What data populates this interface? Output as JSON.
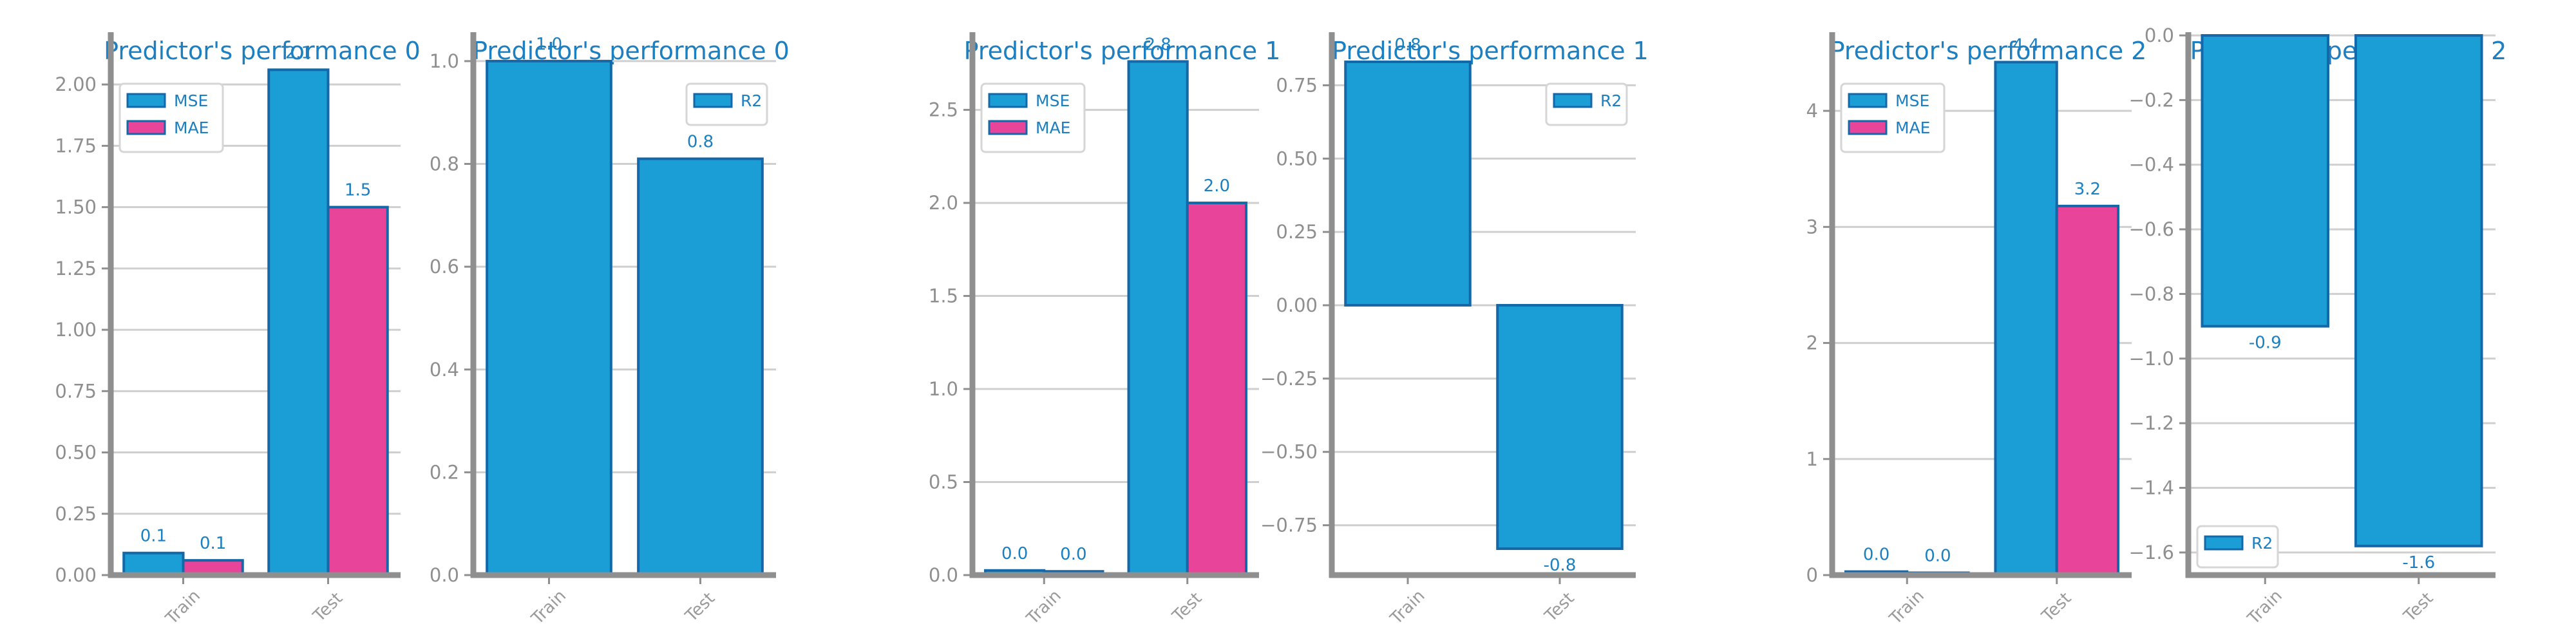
{
  "colors": {
    "MSE": "#1b9dd6",
    "MAE": "#e8449a",
    "R2": "#1b9dd6",
    "edge": "#1468a8"
  },
  "chart_data": [
    {
      "type": "bar",
      "title": "Predictor's performance 0",
      "categories": [
        "Train",
        "Test"
      ],
      "series": [
        {
          "name": "MSE",
          "values": [
            0.09,
            2.06
          ],
          "labels": [
            "0.1",
            "2.1"
          ]
        },
        {
          "name": "MAE",
          "values": [
            0.06,
            1.5
          ],
          "labels": [
            "0.1",
            "1.5"
          ]
        }
      ],
      "ylim": [
        0,
        2.2
      ],
      "yticks": [
        0,
        0.25,
        0.5,
        0.75,
        1.0,
        1.25,
        1.5,
        1.75,
        2.0
      ],
      "ytick_labels": [
        "0.00",
        "0.25",
        "0.50",
        "0.75",
        "1.00",
        "1.25",
        "1.50",
        "1.75",
        "2.00"
      ],
      "legend": "top-left",
      "grid": true
    },
    {
      "type": "bar",
      "title": "Predictor's performance 0",
      "categories": [
        "Train",
        "Test"
      ],
      "series": [
        {
          "name": "R2",
          "values": [
            1.0,
            0.81
          ],
          "labels": [
            "1.0",
            "0.8"
          ]
        }
      ],
      "ylim": [
        0,
        1.05
      ],
      "yticks": [
        0,
        0.2,
        0.4,
        0.6,
        0.8,
        1.0
      ],
      "ytick_labels": [
        "0.0",
        "0.2",
        "0.4",
        "0.6",
        "0.8",
        "1.0"
      ],
      "legend": "top-right",
      "grid": true
    },
    {
      "type": "bar",
      "title": "Predictor's performance 1",
      "categories": [
        "Train",
        "Test"
      ],
      "series": [
        {
          "name": "MSE",
          "values": [
            0.025,
            2.76
          ],
          "labels": [
            "0.0",
            "2.8"
          ]
        },
        {
          "name": "MAE",
          "values": [
            0.02,
            2.0
          ],
          "labels": [
            "0.0",
            "2.0"
          ]
        }
      ],
      "ylim": [
        0,
        2.9
      ],
      "yticks": [
        0,
        0.5,
        1.0,
        1.5,
        2.0,
        2.5
      ],
      "ytick_labels": [
        "0.0",
        "0.5",
        "1.0",
        "1.5",
        "2.0",
        "2.5"
      ],
      "legend": "top-left",
      "grid": true
    },
    {
      "type": "bar",
      "title": "Predictor's performance 1",
      "categories": [
        "Train",
        "Test"
      ],
      "series": [
        {
          "name": "R2",
          "values": [
            0.83,
            -0.83
          ],
          "labels": [
            "0.8",
            "-0.8"
          ]
        }
      ],
      "ylim": [
        -0.92,
        0.92
      ],
      "yticks": [
        -0.75,
        -0.5,
        -0.25,
        0,
        0.25,
        0.5,
        0.75
      ],
      "ytick_labels": [
        "−0.75",
        "−0.50",
        "−0.25",
        "0.00",
        "0.25",
        "0.50",
        "0.75"
      ],
      "legend": "top-right",
      "grid": true
    },
    {
      "type": "bar",
      "title": "Predictor's performance 2",
      "categories": [
        "Train",
        "Test"
      ],
      "series": [
        {
          "name": "MSE",
          "values": [
            0.03,
            4.42
          ],
          "labels": [
            "0.0",
            "4.4"
          ]
        },
        {
          "name": "MAE",
          "values": [
            0.02,
            3.18
          ],
          "labels": [
            "0.0",
            "3.2"
          ]
        }
      ],
      "ylim": [
        0,
        4.65
      ],
      "yticks": [
        0,
        1,
        2,
        3,
        4
      ],
      "ytick_labels": [
        "0",
        "1",
        "2",
        "3",
        "4"
      ],
      "legend": "top-left",
      "grid": true
    },
    {
      "type": "bar",
      "title": "Predictor's performance 2",
      "categories": [
        "Train",
        "Test"
      ],
      "series": [
        {
          "name": "R2",
          "values": [
            -0.9,
            -1.58
          ],
          "labels": [
            "-0.9",
            "-1.6"
          ]
        }
      ],
      "ylim": [
        -1.67,
        0
      ],
      "yticks": [
        -1.6,
        -1.4,
        -1.2,
        -1.0,
        -0.8,
        -0.6,
        -0.4,
        -0.2,
        0
      ],
      "ytick_labels": [
        "−1.6",
        "−1.4",
        "−1.2",
        "−1.0",
        "−0.8",
        "−0.6",
        "−0.4",
        "−0.2",
        "0.0"
      ],
      "legend": "bottom-left",
      "grid": true
    }
  ]
}
